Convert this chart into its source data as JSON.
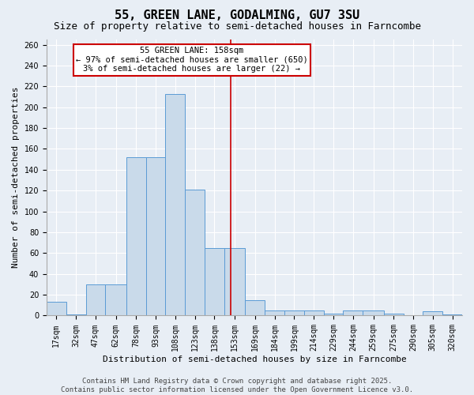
{
  "title": "55, GREEN LANE, GODALMING, GU7 3SU",
  "subtitle": "Size of property relative to semi-detached houses in Farncombe",
  "xlabel": "Distribution of semi-detached houses by size in Farncombe",
  "ylabel": "Number of semi-detached properties",
  "bin_labels": [
    "17sqm",
    "32sqm",
    "47sqm",
    "62sqm",
    "78sqm",
    "93sqm",
    "108sqm",
    "123sqm",
    "138sqm",
    "153sqm",
    "169sqm",
    "184sqm",
    "199sqm",
    "214sqm",
    "229sqm",
    "244sqm",
    "259sqm",
    "275sqm",
    "290sqm",
    "305sqm",
    "320sqm"
  ],
  "bar_heights": [
    13,
    1,
    30,
    30,
    152,
    152,
    213,
    121,
    65,
    65,
    15,
    5,
    5,
    5,
    2,
    5,
    5,
    2,
    0,
    4,
    1
  ],
  "bar_left_edges": [
    17,
    32,
    47,
    62,
    78,
    93,
    108,
    123,
    138,
    153,
    169,
    184,
    199,
    214,
    229,
    244,
    259,
    275,
    290,
    305,
    320
  ],
  "bar_widths": [
    15,
    15,
    15,
    16,
    15,
    15,
    15,
    15,
    15,
    16,
    15,
    15,
    15,
    15,
    15,
    15,
    16,
    15,
    15,
    15,
    15
  ],
  "bar_facecolor": "#c9daea",
  "bar_edgecolor": "#5b9bd5",
  "reference_line_x": 158,
  "annotation_title": "55 GREEN LANE: 158sqm",
  "annotation_line1": "← 97% of semi-detached houses are smaller (650)",
  "annotation_line2": "3% of semi-detached houses are larger (22) →",
  "annotation_box_color": "#cc0000",
  "ylim": [
    0,
    265
  ],
  "yticks": [
    0,
    20,
    40,
    60,
    80,
    100,
    120,
    140,
    160,
    180,
    200,
    220,
    240,
    260
  ],
  "background_color": "#e8eef5",
  "plot_background": "#e8eef5",
  "footer_line1": "Contains HM Land Registry data © Crown copyright and database right 2025.",
  "footer_line2": "Contains public sector information licensed under the Open Government Licence v3.0.",
  "title_fontsize": 11,
  "subtitle_fontsize": 9,
  "axis_label_fontsize": 8,
  "tick_label_fontsize": 7,
  "footer_fontsize": 6.5,
  "annotation_fontsize": 7.5
}
